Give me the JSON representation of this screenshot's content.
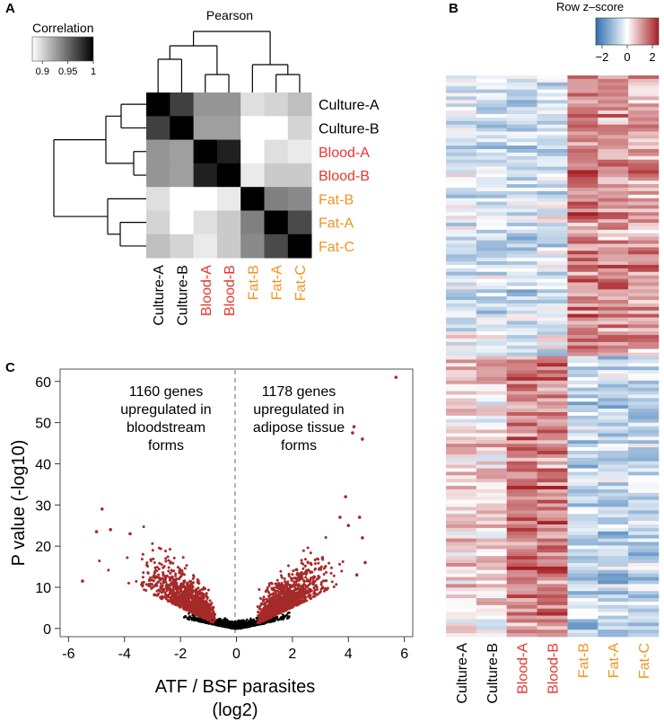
{
  "panel_labels": [
    "A",
    "B",
    "C"
  ],
  "colors": {
    "black": "#000000",
    "blood": "#e8362f",
    "fat": "#f2931e",
    "volcano_sig": "#a62a2a",
    "volcano_ns": "#000000",
    "zneg": "#3a78b6",
    "zpos": "#a81e22"
  },
  "chart_data": [
    {
      "id": "A",
      "type": "heatmap",
      "title": "Pearson",
      "legend": {
        "title": "Correlation",
        "ticks": [
          "0.9",
          "0.95",
          "1"
        ],
        "range": [
          0.88,
          1.0
        ]
      },
      "rows": [
        "Culture-A",
        "Culture-B",
        "Blood-A",
        "Blood-B",
        "Fat-B",
        "Fat-A",
        "Fat-C"
      ],
      "columns": [
        "Culture-A",
        "Culture-B",
        "Blood-A",
        "Blood-B",
        "Fat-B",
        "Fat-A",
        "Fat-C"
      ],
      "label_groups": [
        "culture",
        "culture",
        "blood",
        "blood",
        "fat",
        "fat",
        "fat"
      ],
      "matrix": [
        [
          1.0,
          0.97,
          0.93,
          0.93,
          0.895,
          0.9,
          0.91
        ],
        [
          0.97,
          1.0,
          0.925,
          0.925,
          0.88,
          0.88,
          0.9
        ],
        [
          0.93,
          0.925,
          1.0,
          0.985,
          0.88,
          0.895,
          0.89
        ],
        [
          0.93,
          0.925,
          0.985,
          1.0,
          0.89,
          0.905,
          0.905
        ],
        [
          0.895,
          0.88,
          0.88,
          0.89,
          1.0,
          0.94,
          0.935
        ],
        [
          0.9,
          0.88,
          0.895,
          0.905,
          0.94,
          1.0,
          0.965
        ],
        [
          0.91,
          0.9,
          0.89,
          0.905,
          0.935,
          0.965,
          1.0
        ]
      ]
    },
    {
      "id": "B",
      "type": "heatmap",
      "legend": {
        "title": "Row z–score",
        "ticks": [
          "−2",
          "0",
          "2"
        ],
        "range": [
          -2.5,
          2.5
        ]
      },
      "columns": [
        "Culture-A",
        "Culture-B",
        "Blood-A",
        "Blood-B",
        "Fat-B",
        "Fat-A",
        "Fat-C"
      ],
      "label_groups": [
        "culture",
        "culture",
        "blood",
        "blood",
        "fat",
        "fat",
        "fat"
      ],
      "gene_rows": 160,
      "cluster_split_fraction": 0.5,
      "upper_cluster_means": [
        -0.4,
        -0.6,
        -0.7,
        -0.5,
        1.4,
        1.2,
        1.0
      ],
      "lower_cluster_means": [
        0.5,
        0.4,
        1.5,
        1.4,
        -0.7,
        -0.8,
        -0.8
      ]
    },
    {
      "id": "C",
      "type": "scatter",
      "xlabel": "ATF / BSF parasites",
      "xlabel2": "(log2)",
      "ylabel": "P value (-log10)",
      "xlim": [
        -6.3,
        6.3
      ],
      "ylim": [
        -2,
        63
      ],
      "xticks": [
        -6,
        -4,
        -2,
        0,
        2,
        4,
        6
      ],
      "yticks": [
        0,
        10,
        20,
        30,
        40,
        50,
        60
      ],
      "annotation_left": [
        "1160 genes",
        "upregulated in",
        "bloodstream",
        "forms"
      ],
      "annotation_right": [
        "1178 genes",
        "upregulated in",
        "adipose tissue",
        "forms"
      ],
      "left_significant_count": 1160,
      "right_significant_count": 1178,
      "notable_points": [
        {
          "x": 5.7,
          "y": 61
        },
        {
          "x": 4.2,
          "y": 49
        },
        {
          "x": 4.15,
          "y": 47.5
        },
        {
          "x": 4.5,
          "y": 46
        },
        {
          "x": 3.9,
          "y": 32
        },
        {
          "x": 4.4,
          "y": 27
        },
        {
          "x": 4.0,
          "y": 25
        },
        {
          "x": 4.5,
          "y": 22
        },
        {
          "x": 3.7,
          "y": 27
        },
        {
          "x": -5.5,
          "y": 11.5
        },
        {
          "x": -4.8,
          "y": 29
        },
        {
          "x": -5.0,
          "y": 23.5
        },
        {
          "x": -4.5,
          "y": 24
        },
        {
          "x": -3.8,
          "y": 23
        },
        {
          "x": 4.3,
          "y": 13
        },
        {
          "x": 4.6,
          "y": 16
        }
      ]
    }
  ]
}
